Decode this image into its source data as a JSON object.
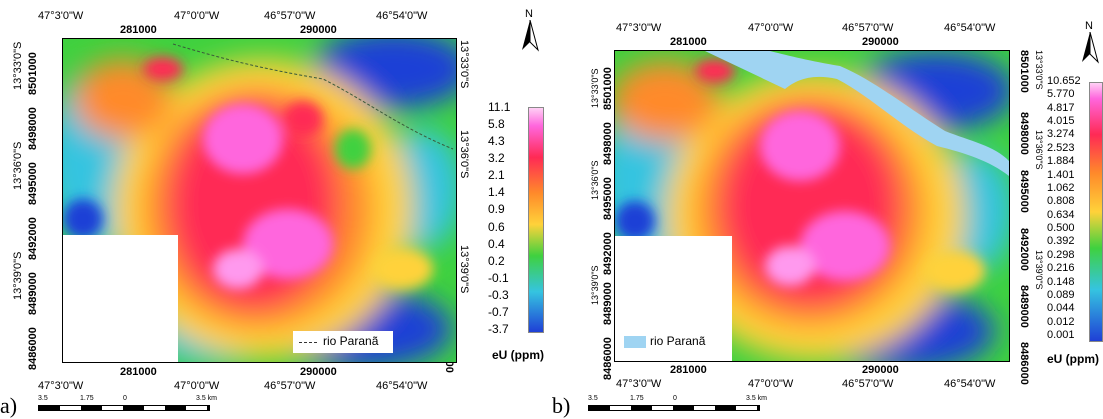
{
  "panels": [
    {
      "letter": "a)",
      "lon_labels": [
        "47°3'0\"W",
        "47°0'0\"W",
        "46°57'0\"W",
        "46°54'0\"W"
      ],
      "utm_x_labels": [
        "281000",
        "290000"
      ],
      "lat_labels": [
        "13°33'0\"S",
        "13°36'0\"S",
        "13°39'0\"S"
      ],
      "utm_y_labels": [
        "8501000",
        "8498000",
        "8495000",
        "8492000",
        "8489000",
        "8486000"
      ],
      "river_label": "rio Paranã",
      "legend_values": [
        "11.1",
        "5.8",
        "4.3",
        "3.2",
        "2.1",
        "1.4",
        "0.9",
        "0.6",
        "0.4",
        "0.2",
        "-0.1",
        "-0.3",
        "-0.7",
        "-3.7"
      ],
      "unit": "eU (ppm)",
      "north": "N",
      "scale_labels": [
        "3.5",
        "1.75",
        "0",
        "3.5 km"
      ]
    },
    {
      "letter": "b)",
      "lon_labels": [
        "47°3'0\"W",
        "47°0'0\"W",
        "46°57'0\"W",
        "46°54'0\"W"
      ],
      "utm_x_labels": [
        "281000",
        "290000"
      ],
      "lat_labels": [
        "13°33'0\"S",
        "13°36'0\"S",
        "13°39'0\"S"
      ],
      "utm_y_labels": [
        "8501000",
        "8498000",
        "8495000",
        "8492000",
        "8489000",
        "8486000"
      ],
      "river_label": "rio Paranã",
      "legend_values": [
        "10.652",
        "5.770",
        "4.817",
        "4.015",
        "3.274",
        "2.523",
        "1.884",
        "1.401",
        "1.062",
        "0.808",
        "0.634",
        "0.500",
        "0.392",
        "0.298",
        "0.216",
        "0.148",
        "0.089",
        "0.044",
        "0.012",
        "0.001"
      ],
      "unit": "eU (ppm)",
      "north": "N",
      "scale_labels": [
        "3.5",
        "1.75",
        "0",
        "3.5 km"
      ]
    }
  ],
  "colors": {
    "low": "#1f3fd6",
    "mid_low": "#35c4e0",
    "mid": "#3fd13f",
    "mid_high": "#ffd23a",
    "high": "#ff8a2a",
    "very_high": "#ff2a55",
    "max": "#ff66dd",
    "river": "#9fd4f2"
  }
}
